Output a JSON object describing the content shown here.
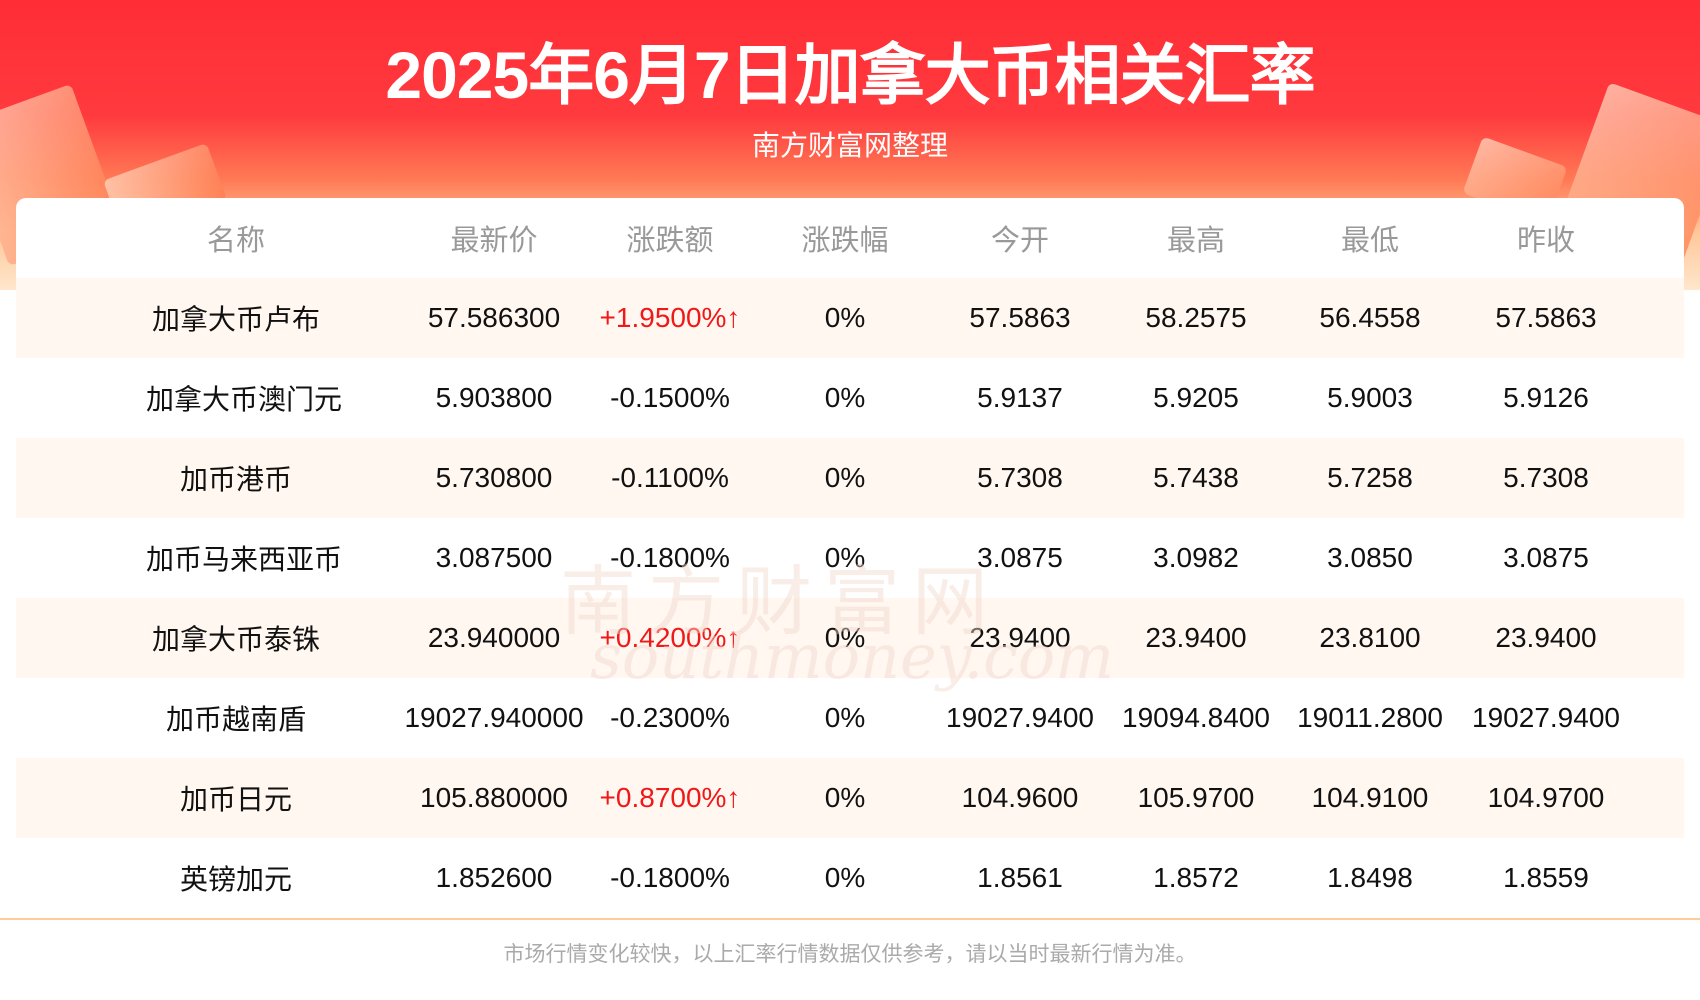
{
  "header": {
    "title": "2025年6月7日加拿大币相关汇率",
    "subtitle": "南方财富网整理"
  },
  "watermark": {
    "cn": "南方财富网",
    "en": "southmoney.com"
  },
  "columns": [
    "名称",
    "最新价",
    "涨跌额",
    "涨跌幅",
    "今开",
    "最高",
    "最低",
    "昨收"
  ],
  "rows": [
    [
      "加拿大币卢布",
      "57.586300",
      "+1.9500%↑",
      "0%",
      "57.5863",
      "58.2575",
      "56.4558",
      "57.5863"
    ],
    [
      "加拿大币澳门元",
      "5.903800",
      "-0.1500%",
      "0%",
      "5.9137",
      "5.9205",
      "5.9003",
      "5.9126"
    ],
    [
      "加币港币",
      "5.730800",
      "-0.1100%",
      "0%",
      "5.7308",
      "5.7438",
      "5.7258",
      "5.7308"
    ],
    [
      "加币马来西亚币",
      "3.087500",
      "-0.1800%",
      "0%",
      "3.0875",
      "3.0982",
      "3.0850",
      "3.0875"
    ],
    [
      "加拿大币泰铢",
      "23.940000",
      "+0.4200%↑",
      "0%",
      "23.9400",
      "23.9400",
      "23.8100",
      "23.9400"
    ],
    [
      "加币越南盾",
      "19027.940000",
      "-0.2300%",
      "0%",
      "19027.9400",
      "19094.8400",
      "19011.2800",
      "19027.9400"
    ],
    [
      "加币日元",
      "105.880000",
      "+0.8700%↑",
      "0%",
      "104.9600",
      "105.9700",
      "104.9100",
      "104.9700"
    ],
    [
      "英镑加元",
      "1.852600",
      "-0.1800%",
      "0%",
      "1.8561",
      "1.8572",
      "1.8498",
      "1.8559"
    ]
  ],
  "footer": "市场行情变化较快，以上汇率行情数据仅供参考，请以当时最新行情为准。",
  "colors": {
    "banner": "#ff2d36",
    "up": "#f01818",
    "alt_row": "#fff7f0",
    "divider": "#ffcc99"
  }
}
